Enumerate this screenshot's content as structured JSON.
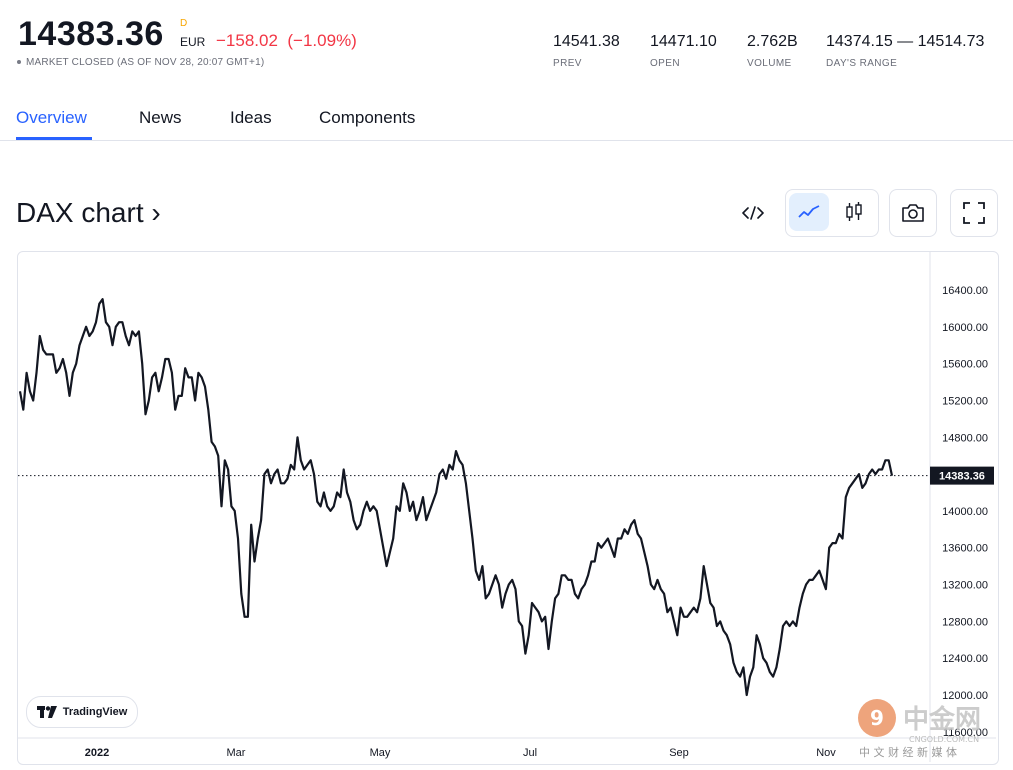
{
  "quote": {
    "price": "14383.36",
    "price_sup": "D",
    "currency": "EUR",
    "change": "−158.02",
    "change_pct": "(−1.09%)",
    "status": "MARKET CLOSED (AS OF NOV 28, 20:07 GMT+1)"
  },
  "stats": [
    {
      "value": "14541.38",
      "label": "PREV"
    },
    {
      "value": "14471.10",
      "label": "OPEN"
    },
    {
      "value": "2.762B",
      "label": "VOLUME"
    },
    {
      "value": "14374.15 — 14514.73",
      "label": "DAY'S RANGE"
    }
  ],
  "tabs": [
    {
      "label": "Overview",
      "active": true
    },
    {
      "label": "News"
    },
    {
      "label": "Ideas"
    },
    {
      "label": "Components"
    }
  ],
  "chart_header": {
    "title": "DAX chart ›"
  },
  "toolbar": [
    "embed-icon",
    "line-chart-icon",
    "candlestick-icon",
    "camera-icon",
    "fullscreen-icon"
  ],
  "branding": {
    "logo_text": "TradingView"
  },
  "watermark": {
    "main": "中金网",
    "sub": "CNGOLD.COM.CN",
    "tagline": "中 文 财 经 新 媒 体"
  },
  "colors": {
    "accent": "#2962ff",
    "negative": "#f23645",
    "line": "#131722",
    "gold": "#f7a600",
    "watermark_orange": "#e05a10"
  },
  "chart_data": {
    "type": "line",
    "xlabels": [
      "2022",
      "Mar",
      "May",
      "Jul",
      "Sep",
      "Nov"
    ],
    "yticks": [
      16400,
      16000,
      15600,
      15200,
      14800,
      14400,
      14000,
      13600,
      13200,
      12800,
      12400,
      12000,
      11600
    ],
    "ylim": [
      11500,
      16750
    ],
    "last_value": 14383.36,
    "last_label": "14383.36",
    "series": [
      {
        "values": [
          15300,
          15100,
          15500,
          15300,
          15200,
          15500,
          15900,
          15750,
          15700,
          15700,
          15700,
          15500,
          15550,
          15650,
          15500,
          15250,
          15500,
          15600,
          15800,
          15900,
          16000,
          15900,
          15950,
          16050,
          16250,
          16300,
          16050,
          16000,
          15800,
          16000,
          16050,
          16050,
          15900,
          15800,
          15950,
          15900,
          15950,
          15600,
          15050,
          15200,
          15450,
          15500,
          15300,
          15450,
          15650,
          15650,
          15500,
          15100,
          15250,
          15250,
          15550,
          15450,
          15450,
          15200,
          15500,
          15450,
          15350,
          15100,
          14750,
          14700,
          14600,
          14050,
          14550,
          14450,
          14050,
          14000,
          13700,
          13100,
          12850,
          12850,
          13850,
          13450,
          13700,
          13900,
          14400,
          14450,
          14300,
          14400,
          14450,
          14300,
          14300,
          14350,
          14500,
          14450,
          14800,
          14550,
          14450,
          14500,
          14550,
          14400,
          14100,
          14050,
          14200,
          14050,
          14000,
          14050,
          14200,
          14150,
          14450,
          14200,
          14100,
          13900,
          13800,
          13850,
          14000,
          14100,
          14000,
          14050,
          14000,
          13800,
          13600,
          13400,
          13550,
          13700,
          14050,
          14000,
          14300,
          14200,
          14000,
          14100,
          13900,
          14000,
          14150,
          13900,
          14000,
          14100,
          14200,
          14400,
          14450,
          14350,
          14500,
          14450,
          14650,
          14550,
          14500,
          14300,
          14000,
          13700,
          13350,
          13250,
          13400,
          13050,
          13100,
          13200,
          13300,
          13200,
          12950,
          13100,
          13200,
          13250,
          13150,
          12800,
          12750,
          12450,
          12650,
          13000,
          12950,
          12900,
          12800,
          12850,
          12500,
          12800,
          13050,
          13100,
          13300,
          13300,
          13250,
          13250,
          13100,
          13050,
          13150,
          13200,
          13300,
          13450,
          13450,
          13650,
          13600,
          13650,
          13700,
          13600,
          13500,
          13700,
          13700,
          13800,
          13750,
          13850,
          13900,
          13750,
          13700,
          13550,
          13400,
          13200,
          13150,
          13250,
          13150,
          13100,
          12900,
          12950,
          12800,
          12650,
          12950,
          12850,
          12850,
          12900,
          12950,
          12900,
          13050,
          13400,
          13200,
          13000,
          12950,
          12750,
          12800,
          12700,
          12650,
          12550,
          12350,
          12250,
          12200,
          12300,
          12000,
          12200,
          12300,
          12650,
          12550,
          12400,
          12350,
          12250,
          12200,
          12300,
          12500,
          12750,
          12800,
          12750,
          12800,
          12750,
          12950,
          13100,
          13200,
          13250,
          13250,
          13300,
          13350,
          13250,
          13150,
          13600,
          13650,
          13650,
          13750,
          13700,
          14150,
          14250,
          14300,
          14350,
          14400,
          14250,
          14300,
          14400,
          14450,
          14400,
          14450,
          14450,
          14550,
          14550,
          14383
        ]
      }
    ]
  }
}
